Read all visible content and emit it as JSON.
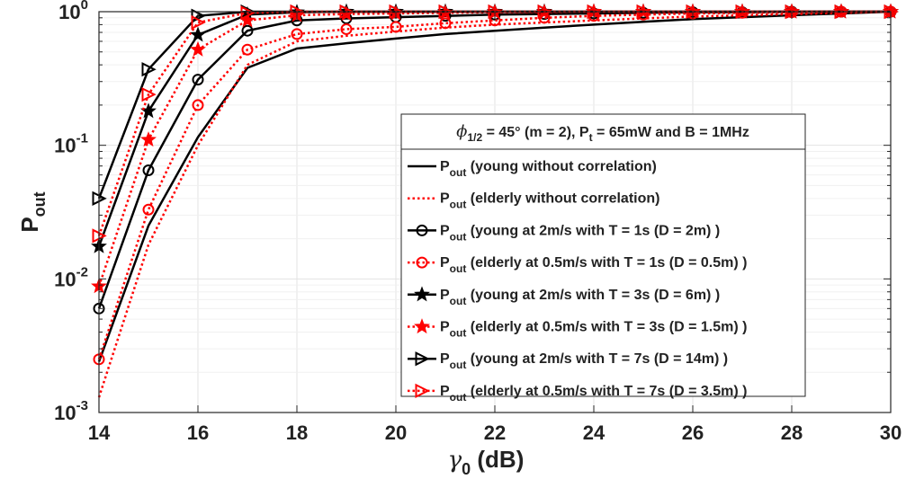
{
  "chart_data": {
    "type": "line",
    "xlabel": {
      "symbol": "γ",
      "sub": "0",
      "rest": " (dB)"
    },
    "ylabel": {
      "main": "P",
      "sub": "out"
    },
    "x_scale": "linear",
    "y_scale": "log",
    "xlim": [
      14,
      30
    ],
    "ylim": [
      0.001,
      1
    ],
    "x_ticks": [
      14,
      16,
      18,
      20,
      22,
      24,
      26,
      28,
      30
    ],
    "y_ticks": [
      {
        "value": 0.001,
        "base": "10",
        "exp": "-3"
      },
      {
        "value": 0.01,
        "base": "10",
        "exp": "-2"
      },
      {
        "value": 0.1,
        "base": "10",
        "exp": "-1"
      },
      {
        "value": 1,
        "base": "10",
        "exp": "0"
      }
    ],
    "grid": true,
    "legend": {
      "placement": "right-center",
      "title": {
        "phi": "ϕ",
        "phi_sub": "1/2",
        "part1": " = 45° (m = 2), P",
        "pt_sub": "t",
        "part2": " = 65mW and B = 1MHz"
      }
    },
    "x": [
      14,
      15,
      16,
      17,
      18,
      19,
      20,
      21,
      22,
      23,
      24,
      25,
      26,
      27,
      28,
      29,
      30
    ],
    "series": [
      {
        "name_main": "P",
        "name_sub": "out",
        "name_rest": " (young without correlation)",
        "color": "#000000",
        "line": "solid",
        "marker": "none",
        "values": [
          0.0024,
          0.025,
          0.115,
          0.38,
          0.53,
          0.58,
          0.63,
          0.68,
          0.72,
          0.76,
          0.8,
          0.84,
          0.88,
          0.91,
          0.94,
          0.97,
          1.0
        ]
      },
      {
        "name_main": "P",
        "name_sub": "out",
        "name_rest": " (elderly without correlation)",
        "color": "#ff0000",
        "line": "dotted",
        "marker": "none",
        "values": [
          0.0013,
          0.018,
          0.1,
          0.4,
          0.6,
          0.66,
          0.71,
          0.76,
          0.8,
          0.83,
          0.86,
          0.89,
          0.92,
          0.94,
          0.96,
          0.98,
          1.0
        ]
      },
      {
        "name_main": "P",
        "name_sub": "out",
        "name_rest": " (young at 2m/s with T = 1s (D = 2m) )",
        "color": "#000000",
        "line": "solid",
        "marker": "circle",
        "values": [
          0.006,
          0.065,
          0.31,
          0.72,
          0.86,
          0.89,
          0.91,
          0.93,
          0.95,
          0.96,
          0.97,
          0.98,
          0.99,
          0.99,
          1.0,
          1.0,
          1.0
        ]
      },
      {
        "name_main": "P",
        "name_sub": "out",
        "name_rest": " (elderly at 0.5m/s with T = 1s (D = 0.5m) )",
        "color": "#ff0000",
        "line": "dotted",
        "marker": "circle",
        "values": [
          0.0025,
          0.033,
          0.2,
          0.52,
          0.68,
          0.74,
          0.77,
          0.82,
          0.86,
          0.9,
          0.93,
          0.95,
          0.97,
          0.98,
          0.99,
          1.0,
          1.0
        ]
      },
      {
        "name_main": "P",
        "name_sub": "out",
        "name_rest": " (young at 2m/s with T = 3s (D = 6m) )",
        "color": "#000000",
        "line": "solid",
        "marker": "star",
        "values": [
          0.0175,
          0.18,
          0.67,
          0.95,
          0.99,
          1.0,
          1.0,
          1.0,
          1.0,
          1.0,
          1.0,
          1.0,
          1.0,
          1.0,
          1.0,
          1.0,
          1.0
        ]
      },
      {
        "name_main": "P",
        "name_sub": "out",
        "name_rest": " (elderly at 0.5m/s with T = 3s (D = 1.5m) )",
        "color": "#ff0000",
        "line": "dotted",
        "marker": "star",
        "values": [
          0.0088,
          0.11,
          0.52,
          0.86,
          0.94,
          0.96,
          0.97,
          0.98,
          0.99,
          0.99,
          1.0,
          1.0,
          1.0,
          1.0,
          1.0,
          1.0,
          1.0
        ]
      },
      {
        "name_main": "P",
        "name_sub": "out",
        "name_rest": " (young at 2m/s with T = 7s (D = 14m) )",
        "color": "#000000",
        "line": "solid",
        "marker": "triangle-right",
        "values": [
          0.04,
          0.37,
          0.93,
          1.0,
          1.0,
          1.0,
          1.0,
          1.0,
          1.0,
          1.0,
          1.0,
          1.0,
          1.0,
          1.0,
          1.0,
          1.0,
          1.0
        ]
      },
      {
        "name_main": "P",
        "name_sub": "out",
        "name_rest": " (elderly at 0.5m/s with T = 7s (D = 3.5m) )",
        "color": "#ff0000",
        "line": "dotted",
        "marker": "triangle-right",
        "values": [
          0.021,
          0.24,
          0.83,
          0.98,
          1.0,
          1.0,
          1.0,
          1.0,
          1.0,
          1.0,
          1.0,
          1.0,
          1.0,
          1.0,
          1.0,
          1.0,
          1.0
        ]
      }
    ]
  }
}
